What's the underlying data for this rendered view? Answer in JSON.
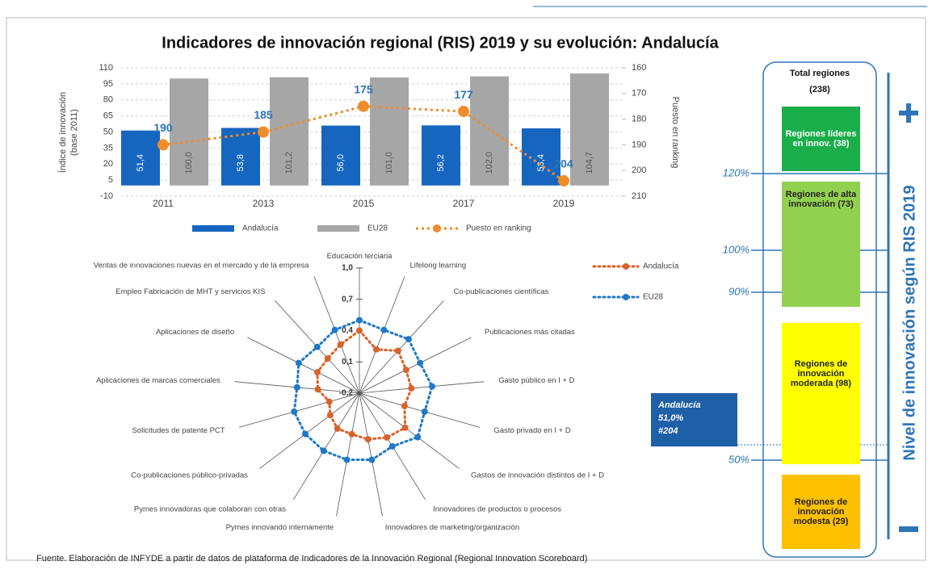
{
  "title": "Indicadores de innovación regional (RIS) 2019 y su evolución: Andalucía",
  "chart_data": [
    {
      "type": "bar",
      "categories": [
        "2011",
        "2013",
        "2015",
        "2017",
        "2019"
      ],
      "ylabel": [
        "Índice de innovación",
        "(base 2011)"
      ],
      "y2label": "Puesto en ranking",
      "ylim": [
        -10,
        110
      ],
      "yticks": [
        -10,
        5,
        20,
        35,
        50,
        65,
        80,
        95,
        110
      ],
      "y2lim": [
        210,
        160
      ],
      "y2ticks": [
        160,
        170,
        180,
        190,
        200,
        210
      ],
      "grid": true,
      "series": [
        {
          "name": "Andalucía",
          "color": "#1666c0",
          "values": [
            51.4,
            53.8,
            56.0,
            56.2,
            53.4
          ],
          "value_labels": [
            "51,4",
            "53,8",
            "56,0",
            "56,2",
            "53,4"
          ]
        },
        {
          "name": "EU28",
          "color": "#a6a6a6",
          "values": [
            100.0,
            101.2,
            101.0,
            102.0,
            104.7
          ],
          "value_labels": [
            "100,0",
            "101,2",
            "101,0",
            "102,0",
            "104,7"
          ]
        },
        {
          "name": "Puesto en ranking",
          "color": "#f08c2a",
          "axis": "y2",
          "type": "line",
          "values": [
            190,
            185,
            175,
            177,
            204
          ]
        }
      ]
    },
    {
      "type": "radar",
      "categories": [
        "Educación terciaria",
        "Lifelong learning",
        "Co-publicaciones científicas",
        "Publicaciones más citadas",
        "Gasto público en I + D",
        "Gasto privado en I + D",
        "Gastos de innovación distintos de I + D",
        "Innovadores de productos o procesos",
        "Innovadores de marketing/organización",
        "Pymes innovando internamente",
        "Pymes innovadoras que colaboran con otras",
        "Co-publicaciones público-privadas",
        "Solicitudes de patente PCT",
        "Aplicaciones de marcas comerciales",
        "Aplicaciones de diseño",
        "Empleo Fabricación de MHT y servicios KIS",
        "Ventas de innovaciones nuevas en el mercado y de la empresa"
      ],
      "rlim": [
        -0.2,
        1.0
      ],
      "rticks": [
        {
          "value": -0.2,
          "label": "-0,2"
        },
        {
          "value": 0.1,
          "label": "0,1"
        },
        {
          "value": 0.4,
          "label": "0,4"
        },
        {
          "value": 0.7,
          "label": "0,7"
        },
        {
          "value": 1.0,
          "label": "1,0"
        }
      ],
      "series": [
        {
          "name": "Andalucía",
          "color": "#d9622b",
          "values": [
            0.4,
            0.25,
            0.35,
            0.3,
            0.3,
            0.25,
            0.35,
            0.3,
            0.25,
            0.2,
            0.2,
            0.15,
            0.1,
            0.2,
            0.25,
            0.25,
            0.3
          ]
        },
        {
          "name": "EU28",
          "color": "#1f78c8",
          "values": [
            0.5,
            0.45,
            0.5,
            0.45,
            0.5,
            0.45,
            0.5,
            0.4,
            0.45,
            0.45,
            0.45,
            0.45,
            0.45,
            0.4,
            0.45,
            0.4,
            0.45
          ]
        }
      ]
    }
  ],
  "panel": {
    "title": "Total regiones",
    "total": "(238)",
    "groups": [
      "Regiones líderes en innov. (38)",
      "Regiones de alta innovación (73)",
      "Regiones de innovación moderada (98)",
      "Regiones de innovación modesta (29)"
    ],
    "thresholds": [
      "120%",
      "100%",
      "90%",
      "50%"
    ],
    "region": [
      "Andalucía",
      "51,0%",
      "#204"
    ],
    "axis_title": "Nivel de innovación según RIS 2019"
  },
  "source": "Fuente. Elaboración de INFYDE a partir de datos de plataforma de Indicadores de la Innovación Regional (Regional Innovation Scoreboard)"
}
